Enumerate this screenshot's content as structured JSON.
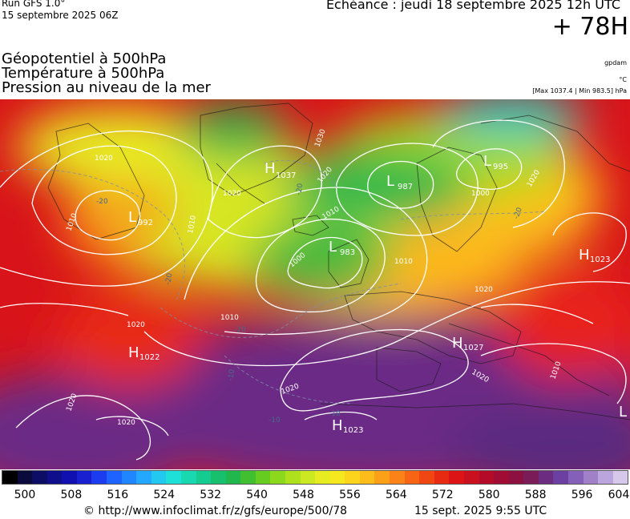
{
  "header": {
    "run": "Run GFS 1.0°",
    "run_date": "15 septembre 2025 06Z",
    "echeance": "Echéance : jeudi 18 septembre 2025 12h UTC",
    "lead_time": "+ 78H"
  },
  "parameters": [
    "Géopotentiel à 500hPa",
    "Température à 500hPa",
    "Pression au niveau de la mer"
  ],
  "units": {
    "geopotential": "gpdam",
    "temperature": "°C",
    "pressure_range": "[Max 1037.4 | Min 983.5] hPa"
  },
  "pressure_centres": [
    {
      "type": "H",
      "value": "1037"
    },
    {
      "type": "L",
      "value": "987"
    },
    {
      "type": "L",
      "value": "995"
    },
    {
      "type": "L",
      "value": "992"
    },
    {
      "type": "L",
      "value": "983"
    },
    {
      "type": "H",
      "value": "1023"
    },
    {
      "type": "H",
      "value": "1022"
    },
    {
      "type": "H",
      "value": "1027"
    },
    {
      "type": "H",
      "value": "1023"
    },
    {
      "type": "L",
      "value": ""
    }
  ],
  "isobar_labels": [
    "1020",
    "1010",
    "1020",
    "1030",
    "1020",
    "1010",
    "1010",
    "1000",
    "1000",
    "1010",
    "1020",
    "1010",
    "1020",
    "1020",
    "1020",
    "1020",
    "1020",
    "1010",
    "1020"
  ],
  "temperature_labels": [
    "-20",
    "-20",
    "-20",
    "-20",
    "-20",
    "-10",
    "-10",
    "-10"
  ],
  "colorbar": {
    "unit": "gpdam",
    "min": 496,
    "max": 604,
    "tick_labels": [
      "500",
      "508",
      "516",
      "524",
      "532",
      "540",
      "548",
      "556",
      "564",
      "572",
      "580",
      "588",
      "596",
      "604"
    ],
    "colors": [
      "#000000",
      "#0a0a3c",
      "#0d0d66",
      "#0f0f8c",
      "#1010b0",
      "#1820d0",
      "#1c3cf0",
      "#1e62ff",
      "#2086ff",
      "#24a8ff",
      "#22c8f0",
      "#1ee0d8",
      "#18d8b0",
      "#14cc90",
      "#16c06c",
      "#20b84c",
      "#40c030",
      "#66cc20",
      "#8cd81c",
      "#aee01c",
      "#cce820",
      "#e6ec20",
      "#f6e81e",
      "#fcd41c",
      "#fcbc1a",
      "#fca018",
      "#fa8216",
      "#f66414",
      "#f04612",
      "#e82a12",
      "#dc1416",
      "#c8101e",
      "#b40c28",
      "#a00c34",
      "#8c1040",
      "#7a1c58",
      "#6c2c80",
      "#6c40a0",
      "#8460b8",
      "#a080c8",
      "#bca4dc",
      "#d6c8ea"
    ]
  },
  "footer": {
    "url": "© http://www.infoclimat.fr/z/gfs/europe/500/78",
    "timestamp": "15 sept. 2025  9:55 UTC"
  }
}
